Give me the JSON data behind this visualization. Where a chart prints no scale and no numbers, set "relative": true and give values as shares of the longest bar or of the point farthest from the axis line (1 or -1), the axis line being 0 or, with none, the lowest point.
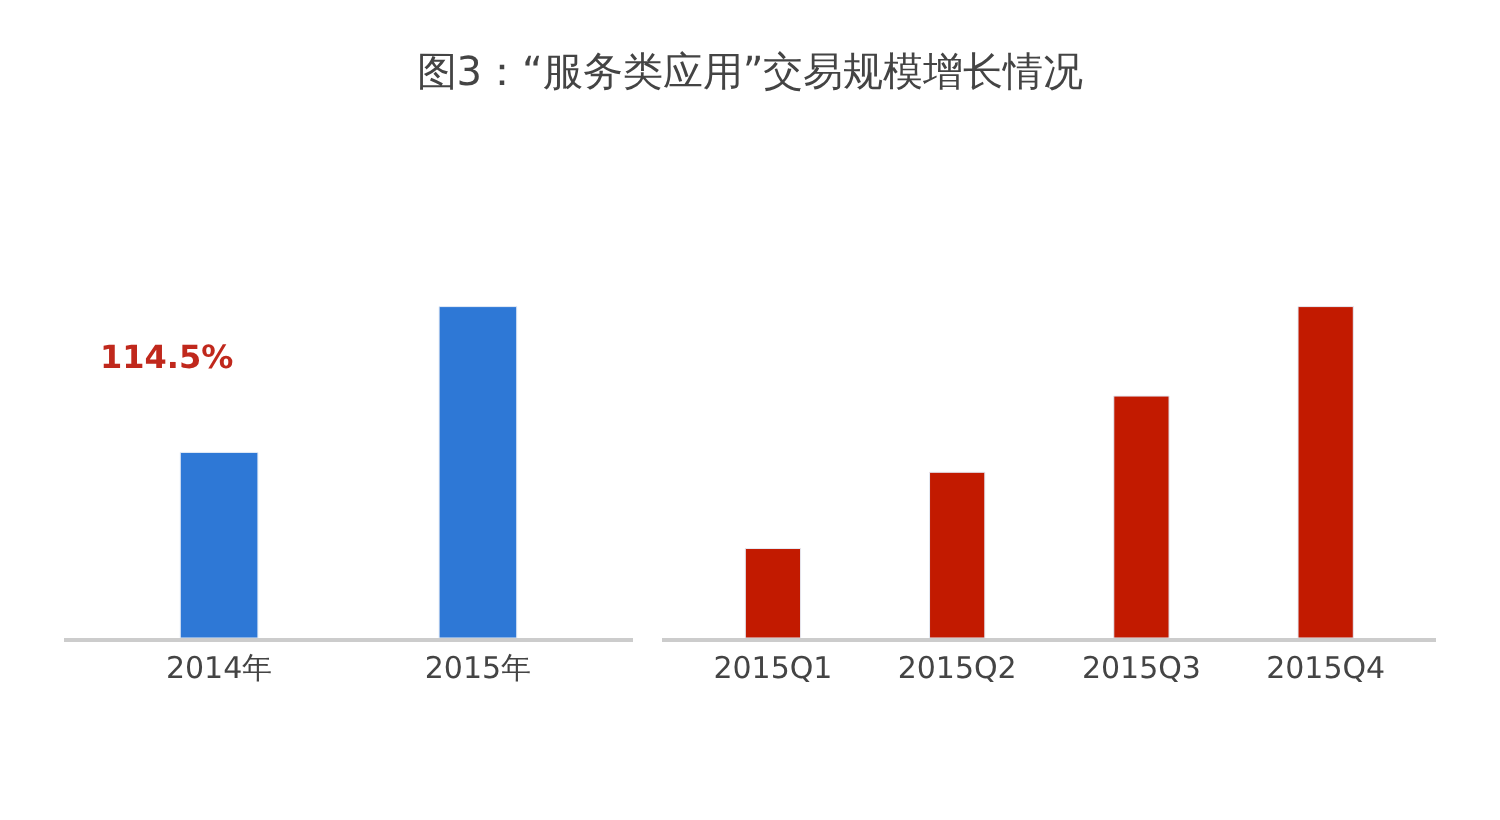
{
  "chart_data": [
    {
      "type": "bar",
      "title": "图3：“服务类应用”交易规模增长情况",
      "relative": true,
      "categories": [
        "2014年",
        "2015年"
      ],
      "values": [
        0.56,
        1
      ],
      "color": "#2e78d6",
      "annotations": [
        "114.5%"
      ]
    },
    {
      "type": "bar",
      "relative": true,
      "categories": [
        "2015Q1",
        "2015Q2",
        "2015Q3",
        "2015Q4"
      ],
      "values": [
        0.27,
        0.5,
        0.73,
        1
      ],
      "color": "#c21a00"
    }
  ]
}
